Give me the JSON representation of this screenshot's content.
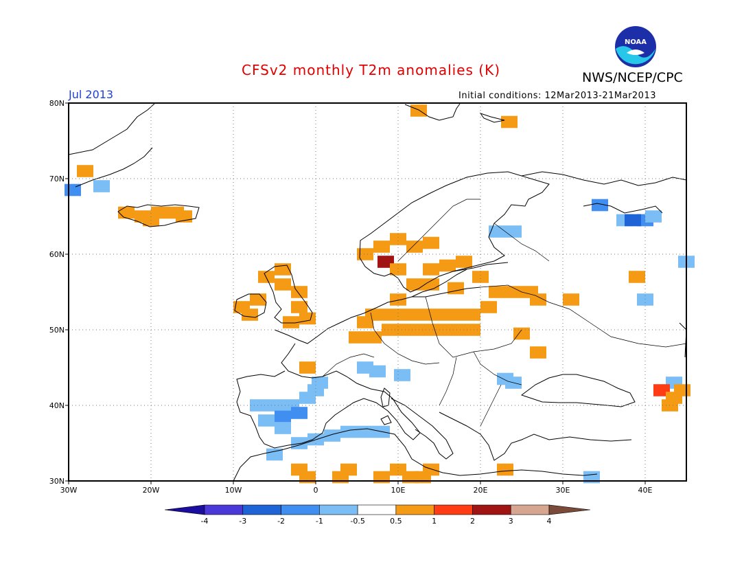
{
  "header": {
    "title": "CFSv2 monthly T2m anomalies (K)",
    "agency": "NWS/NCEP/CPC",
    "period": "Jul 2013",
    "initial_conditions": "Initial conditions: 12Mar2013-21Mar2013",
    "logo_text": "NOAA"
  },
  "map": {
    "lon_range": [
      -30,
      45
    ],
    "lat_range": [
      30,
      80
    ],
    "lon_ticks": [
      {
        "v": -30,
        "label": "30W"
      },
      {
        "v": -20,
        "label": "20W"
      },
      {
        "v": -10,
        "label": "10W"
      },
      {
        "v": 0,
        "label": "0"
      },
      {
        "v": 10,
        "label": "10E"
      },
      {
        "v": 20,
        "label": "20E"
      },
      {
        "v": 30,
        "label": "30E"
      },
      {
        "v": 40,
        "label": "40E"
      }
    ],
    "lat_ticks": [
      {
        "v": 30,
        "label": "30N"
      },
      {
        "v": 40,
        "label": "40N"
      },
      {
        "v": 50,
        "label": "50N"
      },
      {
        "v": 60,
        "label": "60N"
      },
      {
        "v": 70,
        "label": "70N"
      },
      {
        "v": 80,
        "label": "80N"
      }
    ],
    "grid": true,
    "anomaly_cells": [
      {
        "lon": -23,
        "lat": 65.5,
        "val": 0.8
      },
      {
        "lon": -21,
        "lat": 65,
        "val": 0.8
      },
      {
        "lon": -19,
        "lat": 65.5,
        "val": 0.8
      },
      {
        "lon": -17,
        "lat": 65.5,
        "val": 0.8
      },
      {
        "lon": -16,
        "lat": 65,
        "val": 0.8
      },
      {
        "lon": -20,
        "lat": 64.5,
        "val": 0.8
      },
      {
        "lon": -28,
        "lat": 71,
        "val": 0.8
      },
      {
        "lon": -26,
        "lat": 69,
        "val": -0.8
      },
      {
        "lon": -29.5,
        "lat": 68.5,
        "val": -1.5
      },
      {
        "lon": 12.5,
        "lat": 79,
        "val": 0.8
      },
      {
        "lon": 23.5,
        "lat": 77.5,
        "val": 0.8
      },
      {
        "lon": -6,
        "lat": 57,
        "val": 0.8
      },
      {
        "lon": -4,
        "lat": 58,
        "val": 0.8
      },
      {
        "lon": -4,
        "lat": 56,
        "val": 0.8
      },
      {
        "lon": -2,
        "lat": 55,
        "val": 0.8
      },
      {
        "lon": -2,
        "lat": 53,
        "val": 0.8
      },
      {
        "lon": -3,
        "lat": 51,
        "val": 0.8
      },
      {
        "lon": -9,
        "lat": 53,
        "val": 0.8
      },
      {
        "lon": -7,
        "lat": 54,
        "val": 0.8
      },
      {
        "lon": -8,
        "lat": 52,
        "val": 0.8
      },
      {
        "lon": -1,
        "lat": 51.5,
        "val": 0.8
      },
      {
        "lon": 6,
        "lat": 60,
        "val": 0.8
      },
      {
        "lon": 8,
        "lat": 61,
        "val": 0.8
      },
      {
        "lon": 10,
        "lat": 62,
        "val": 0.8
      },
      {
        "lon": 12,
        "lat": 61,
        "val": 0.8
      },
      {
        "lon": 14,
        "lat": 61.5,
        "val": 0.8
      },
      {
        "lon": 8.5,
        "lat": 59,
        "val": 2.2
      },
      {
        "lon": 10,
        "lat": 58,
        "val": 0.8
      },
      {
        "lon": 14,
        "lat": 58,
        "val": 0.8
      },
      {
        "lon": 16,
        "lat": 58.5,
        "val": 0.8
      },
      {
        "lon": 18,
        "lat": 59,
        "val": 0.8
      },
      {
        "lon": 20,
        "lat": 57,
        "val": 0.8
      },
      {
        "lon": 12,
        "lat": 56,
        "val": 0.8
      },
      {
        "lon": 14,
        "lat": 56,
        "val": 0.8
      },
      {
        "lon": 17,
        "lat": 55.5,
        "val": 0.8
      },
      {
        "lon": 7,
        "lat": 52,
        "val": 0.8
      },
      {
        "lon": 9,
        "lat": 52,
        "val": 0.8
      },
      {
        "lon": 11,
        "lat": 52,
        "val": 0.8
      },
      {
        "lon": 13,
        "lat": 52,
        "val": 0.8
      },
      {
        "lon": 15,
        "lat": 52,
        "val": 0.8
      },
      {
        "lon": 17,
        "lat": 52,
        "val": 0.8
      },
      {
        "lon": 19,
        "lat": 52,
        "val": 0.8
      },
      {
        "lon": 21,
        "lat": 53,
        "val": 0.8
      },
      {
        "lon": 9,
        "lat": 50,
        "val": 0.8
      },
      {
        "lon": 11,
        "lat": 50,
        "val": 0.8
      },
      {
        "lon": 13,
        "lat": 50,
        "val": 0.8
      },
      {
        "lon": 15,
        "lat": 50,
        "val": 0.8
      },
      {
        "lon": 17,
        "lat": 50,
        "val": 0.8
      },
      {
        "lon": 19,
        "lat": 50,
        "val": 0.8
      },
      {
        "lon": 5,
        "lat": 49,
        "val": 0.8
      },
      {
        "lon": 7,
        "lat": 49,
        "val": 0.8
      },
      {
        "lon": 6,
        "lat": 51,
        "val": 0.8
      },
      {
        "lon": 10,
        "lat": 54,
        "val": 0.8
      },
      {
        "lon": 22,
        "lat": 55,
        "val": 0.8
      },
      {
        "lon": 24,
        "lat": 55,
        "val": 0.8
      },
      {
        "lon": 26,
        "lat": 55,
        "val": 0.8
      },
      {
        "lon": 27,
        "lat": 54,
        "val": 0.8
      },
      {
        "lon": 31,
        "lat": 54,
        "val": 0.8
      },
      {
        "lon": 25,
        "lat": 49.5,
        "val": 0.8
      },
      {
        "lon": 27,
        "lat": 47,
        "val": 0.8
      },
      {
        "lon": -1,
        "lat": 45,
        "val": 0.8
      },
      {
        "lon": 39,
        "lat": 57,
        "val": 0.8
      },
      {
        "lon": 22,
        "lat": 63,
        "val": -0.8
      },
      {
        "lon": 24,
        "lat": 63,
        "val": -0.8
      },
      {
        "lon": 37.5,
        "lat": 64.5,
        "val": -0.8
      },
      {
        "lon": 40,
        "lat": 64.5,
        "val": -1.5
      },
      {
        "lon": 41,
        "lat": 65,
        "val": -0.8
      },
      {
        "lon": 38.5,
        "lat": 64.5,
        "val": -2.5
      },
      {
        "lon": 34.5,
        "lat": 66.5,
        "val": -1.5
      },
      {
        "lon": 40,
        "lat": 54,
        "val": -0.8
      },
      {
        "lon": 45,
        "lat": 59,
        "val": -0.8
      },
      {
        "lon": -7,
        "lat": 40,
        "val": -0.8
      },
      {
        "lon": -5,
        "lat": 40,
        "val": -0.8
      },
      {
        "lon": -3,
        "lat": 40,
        "val": -0.8
      },
      {
        "lon": -1,
        "lat": 41,
        "val": -0.8
      },
      {
        "lon": -6,
        "lat": 38,
        "val": -0.8
      },
      {
        "lon": -4,
        "lat": 38.5,
        "val": -1.5
      },
      {
        "lon": -2,
        "lat": 39,
        "val": -1.5
      },
      {
        "lon": 0,
        "lat": 42,
        "val": -0.8
      },
      {
        "lon": 0.5,
        "lat": 43,
        "val": -0.8
      },
      {
        "lon": -4,
        "lat": 37,
        "val": -0.8
      },
      {
        "lon": -5,
        "lat": 33.5,
        "val": -0.8
      },
      {
        "lon": -2,
        "lat": 35,
        "val": -0.8
      },
      {
        "lon": 0,
        "lat": 35.5,
        "val": -0.8
      },
      {
        "lon": 2,
        "lat": 36,
        "val": -0.8
      },
      {
        "lon": 4,
        "lat": 36.5,
        "val": -0.8
      },
      {
        "lon": 6,
        "lat": 36.5,
        "val": -0.8
      },
      {
        "lon": 8,
        "lat": 36.5,
        "val": -0.8
      },
      {
        "lon": 6,
        "lat": 45,
        "val": -0.8
      },
      {
        "lon": 7.5,
        "lat": 44.5,
        "val": -0.8
      },
      {
        "lon": 10.5,
        "lat": 44,
        "val": -0.8
      },
      {
        "lon": 23,
        "lat": 43.5,
        "val": -0.8
      },
      {
        "lon": 24,
        "lat": 43,
        "val": -0.8
      },
      {
        "lon": 43.5,
        "lat": 43,
        "val": -0.8
      },
      {
        "lon": 42,
        "lat": 42,
        "val": 1.5
      },
      {
        "lon": 43.5,
        "lat": 41,
        "val": 0.8
      },
      {
        "lon": 44.5,
        "lat": 42,
        "val": 0.8
      },
      {
        "lon": 43,
        "lat": 40,
        "val": 0.8
      },
      {
        "lon": 33.5,
        "lat": 30.5,
        "val": -1.0
      },
      {
        "lon": -2,
        "lat": 31.5,
        "val": 0.8
      },
      {
        "lon": -1,
        "lat": 30.5,
        "val": 0.8
      },
      {
        "lon": 3,
        "lat": 30.5,
        "val": 0.8
      },
      {
        "lon": 4,
        "lat": 31.5,
        "val": 0.8
      },
      {
        "lon": 8,
        "lat": 30.5,
        "val": 0.8
      },
      {
        "lon": 10,
        "lat": 31.5,
        "val": 0.8
      },
      {
        "lon": 11.5,
        "lat": 30.5,
        "val": 0.8
      },
      {
        "lon": 13,
        "lat": 30.5,
        "val": 0.8
      },
      {
        "lon": 14,
        "lat": 31.5,
        "val": 0.8
      },
      {
        "lon": 23,
        "lat": 31.5,
        "val": 0.8
      }
    ]
  },
  "colorbar": {
    "boundaries": [
      "-4",
      "-3",
      "-2",
      "-1",
      "-0.5",
      "0.5",
      "1",
      "2",
      "3",
      "4"
    ],
    "colors": [
      "#1b0e9e",
      "#4a38d8",
      "#1f64d6",
      "#3f8ef0",
      "#7bbdf5",
      "#ffffff",
      "#f59a14",
      "#ff3c14",
      "#a01414",
      "#d6a690",
      "#7a4a3a"
    ]
  }
}
